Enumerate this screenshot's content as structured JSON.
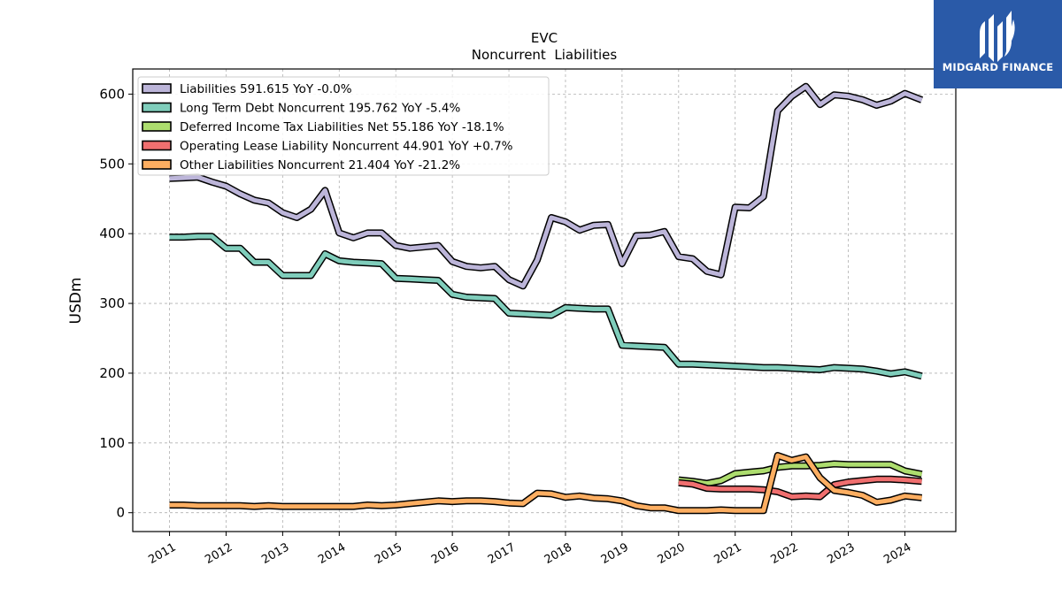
{
  "brand": {
    "name": "MIDGARD FINANCE",
    "bg_color": "#2a5aa8"
  },
  "chart_data": {
    "type": "line",
    "title": "EVC",
    "subtitle": "Noncurrent  Liabilities",
    "ylabel": "USDm",
    "xlabel": "",
    "ylim": [
      -27,
      636
    ],
    "xlim": [
      2010.35,
      2024.9
    ],
    "yticks": [
      0,
      100,
      200,
      300,
      400,
      500,
      600
    ],
    "xticks": [
      2011,
      2012,
      2013,
      2014,
      2015,
      2016,
      2017,
      2018,
      2019,
      2020,
      2021,
      2022,
      2023,
      2024
    ],
    "grid": true,
    "legend_position": "top-left",
    "series": [
      {
        "name": "Liabilities",
        "legend_label": "Liabilities  591.615 YoY -0.0%",
        "color": "#bcb5d9",
        "points": [
          [
            2011.0,
            479
          ],
          [
            2011.25,
            480
          ],
          [
            2011.5,
            481
          ],
          [
            2011.75,
            474
          ],
          [
            2012.0,
            468
          ],
          [
            2012.25,
            457
          ],
          [
            2012.5,
            448
          ],
          [
            2012.75,
            444
          ],
          [
            2013.0,
            430
          ],
          [
            2013.25,
            423
          ],
          [
            2013.5,
            435
          ],
          [
            2013.75,
            462
          ],
          [
            2014.0,
            401
          ],
          [
            2014.25,
            394
          ],
          [
            2014.5,
            401
          ],
          [
            2014.75,
            401
          ],
          [
            2015.0,
            383
          ],
          [
            2015.25,
            379
          ],
          [
            2015.5,
            381
          ],
          [
            2015.75,
            383
          ],
          [
            2016.0,
            360
          ],
          [
            2016.25,
            353
          ],
          [
            2016.5,
            351
          ],
          [
            2016.75,
            353
          ],
          [
            2017.0,
            334
          ],
          [
            2017.25,
            325
          ],
          [
            2017.5,
            362
          ],
          [
            2017.75,
            423
          ],
          [
            2018.0,
            417
          ],
          [
            2018.25,
            405
          ],
          [
            2018.5,
            412
          ],
          [
            2018.75,
            413
          ],
          [
            2019.0,
            357
          ],
          [
            2019.25,
            397
          ],
          [
            2019.5,
            398
          ],
          [
            2019.75,
            403
          ],
          [
            2020.0,
            367
          ],
          [
            2020.25,
            364
          ],
          [
            2020.5,
            346
          ],
          [
            2020.75,
            341
          ],
          [
            2021.0,
            438
          ],
          [
            2021.25,
            437
          ],
          [
            2021.5,
            453
          ],
          [
            2021.75,
            576
          ],
          [
            2022.0,
            597
          ],
          [
            2022.25,
            611
          ],
          [
            2022.5,
            585
          ],
          [
            2022.75,
            599
          ],
          [
            2023.0,
            597
          ],
          [
            2023.25,
            592
          ],
          [
            2023.5,
            584
          ],
          [
            2023.75,
            590
          ],
          [
            2024.0,
            601
          ],
          [
            2024.3,
            591.615
          ]
        ]
      },
      {
        "name": "Long Term Debt Noncurrent",
        "legend_label": "Long Term Debt Noncurrent  195.762 YoY -5.4%",
        "color": "#7fcdbb",
        "points": [
          [
            2011.0,
            395
          ],
          [
            2011.25,
            395
          ],
          [
            2011.5,
            396
          ],
          [
            2011.75,
            396
          ],
          [
            2012.0,
            379
          ],
          [
            2012.25,
            379
          ],
          [
            2012.5,
            359
          ],
          [
            2012.75,
            359
          ],
          [
            2013.0,
            340
          ],
          [
            2013.25,
            340
          ],
          [
            2013.5,
            340
          ],
          [
            2013.75,
            371
          ],
          [
            2014.0,
            361
          ],
          [
            2014.25,
            359
          ],
          [
            2014.5,
            358
          ],
          [
            2014.75,
            357
          ],
          [
            2015.0,
            336
          ],
          [
            2015.25,
            335
          ],
          [
            2015.5,
            334
          ],
          [
            2015.75,
            333
          ],
          [
            2016.0,
            313
          ],
          [
            2016.25,
            309
          ],
          [
            2016.5,
            308
          ],
          [
            2016.75,
            307
          ],
          [
            2017.0,
            286
          ],
          [
            2017.25,
            285
          ],
          [
            2017.5,
            284
          ],
          [
            2017.75,
            283
          ],
          [
            2018.0,
            294
          ],
          [
            2018.25,
            293
          ],
          [
            2018.5,
            292
          ],
          [
            2018.75,
            292
          ],
          [
            2019.0,
            240
          ],
          [
            2019.25,
            239
          ],
          [
            2019.5,
            238
          ],
          [
            2019.75,
            237
          ],
          [
            2020.0,
            213
          ],
          [
            2020.25,
            213
          ],
          [
            2020.5,
            212
          ],
          [
            2020.75,
            211
          ],
          [
            2021.0,
            210
          ],
          [
            2021.25,
            209
          ],
          [
            2021.5,
            208
          ],
          [
            2021.75,
            208
          ],
          [
            2022.0,
            207
          ],
          [
            2022.25,
            206
          ],
          [
            2022.5,
            205
          ],
          [
            2022.75,
            208
          ],
          [
            2023.0,
            207
          ],
          [
            2023.25,
            206
          ],
          [
            2023.5,
            203
          ],
          [
            2023.75,
            199
          ],
          [
            2024.0,
            202
          ],
          [
            2024.3,
            195.762
          ]
        ]
      },
      {
        "name": "Deferred Income Tax Liabilities Net",
        "legend_label": "Deferred Income Tax Liabilities Net  55.186 YoY -18.1%",
        "color": "#addd6e",
        "points": [
          [
            2020.0,
            47
          ],
          [
            2020.25,
            45
          ],
          [
            2020.5,
            42
          ],
          [
            2020.75,
            46
          ],
          [
            2021.0,
            56
          ],
          [
            2021.25,
            58
          ],
          [
            2021.5,
            60
          ],
          [
            2021.75,
            65
          ],
          [
            2022.0,
            67
          ],
          [
            2022.25,
            67
          ],
          [
            2022.5,
            68
          ],
          [
            2022.75,
            70
          ],
          [
            2023.0,
            69
          ],
          [
            2023.25,
            69
          ],
          [
            2023.5,
            69
          ],
          [
            2023.75,
            69
          ],
          [
            2024.0,
            60
          ],
          [
            2024.3,
            55.186
          ]
        ]
      },
      {
        "name": "Operating Lease Liability Noncurrent",
        "legend_label": "Operating Lease Liability Noncurrent  44.901 YoY +0.7%",
        "color": "#f06f6f",
        "points": [
          [
            2020.0,
            43
          ],
          [
            2020.25,
            41
          ],
          [
            2020.5,
            35
          ],
          [
            2020.75,
            34
          ],
          [
            2021.0,
            34
          ],
          [
            2021.25,
            34
          ],
          [
            2021.5,
            33
          ],
          [
            2021.75,
            30
          ],
          [
            2022.0,
            23
          ],
          [
            2022.25,
            24
          ],
          [
            2022.5,
            23
          ],
          [
            2022.75,
            40
          ],
          [
            2023.0,
            44
          ],
          [
            2023.25,
            46
          ],
          [
            2023.5,
            48
          ],
          [
            2023.75,
            48
          ],
          [
            2024.0,
            47
          ],
          [
            2024.3,
            44.901
          ]
        ]
      },
      {
        "name": "Other Liabilities Noncurrent",
        "legend_label": "Other Liabilities Noncurrent  21.404 YoY -21.2%",
        "color": "#fdae61",
        "points": [
          [
            2011.0,
            11
          ],
          [
            2011.25,
            11
          ],
          [
            2011.5,
            10
          ],
          [
            2011.75,
            10
          ],
          [
            2012.0,
            10
          ],
          [
            2012.25,
            10
          ],
          [
            2012.5,
            9
          ],
          [
            2012.75,
            10
          ],
          [
            2013.0,
            9
          ],
          [
            2013.25,
            9
          ],
          [
            2013.5,
            9
          ],
          [
            2013.75,
            9
          ],
          [
            2014.0,
            9
          ],
          [
            2014.25,
            9
          ],
          [
            2014.5,
            11
          ],
          [
            2014.75,
            10
          ],
          [
            2015.0,
            11
          ],
          [
            2015.25,
            13
          ],
          [
            2015.5,
            15
          ],
          [
            2015.75,
            17
          ],
          [
            2016.0,
            16
          ],
          [
            2016.25,
            17
          ],
          [
            2016.5,
            17
          ],
          [
            2016.75,
            16
          ],
          [
            2017.0,
            14
          ],
          [
            2017.25,
            13
          ],
          [
            2017.5,
            28
          ],
          [
            2017.75,
            27
          ],
          [
            2018.0,
            22
          ],
          [
            2018.25,
            24
          ],
          [
            2018.5,
            21
          ],
          [
            2018.75,
            20
          ],
          [
            2019.0,
            17
          ],
          [
            2019.25,
            10
          ],
          [
            2019.5,
            7
          ],
          [
            2019.75,
            7
          ],
          [
            2020.0,
            3
          ],
          [
            2020.25,
            3
          ],
          [
            2020.5,
            3
          ],
          [
            2020.75,
            4
          ],
          [
            2021.0,
            3
          ],
          [
            2021.25,
            3
          ],
          [
            2021.5,
            3
          ],
          [
            2021.75,
            82
          ],
          [
            2022.0,
            75
          ],
          [
            2022.25,
            80
          ],
          [
            2022.5,
            50
          ],
          [
            2022.75,
            32
          ],
          [
            2023.0,
            29
          ],
          [
            2023.25,
            25
          ],
          [
            2023.5,
            15
          ],
          [
            2023.75,
            18
          ],
          [
            2024.0,
            24
          ],
          [
            2024.3,
            21.404
          ]
        ]
      }
    ]
  }
}
